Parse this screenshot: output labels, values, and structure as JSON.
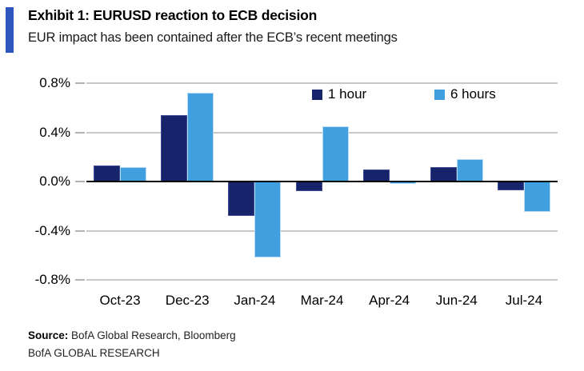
{
  "header": {
    "exhibit_title": "Exhibit 1: EURUSD reaction to ECB decision",
    "subtitle": "EUR impact has been contained after the ECB’s recent meetings",
    "accent_color": "#2d55bb"
  },
  "chart_data": {
    "type": "bar",
    "title": "EURUSD reaction to ECB decision",
    "categories": [
      "Oct-23",
      "Dec-23",
      "Jan-24",
      "Mar-24",
      "Apr-24",
      "Jun-24",
      "Jul-24"
    ],
    "series": [
      {
        "name": "1 hour",
        "color": "#17246b",
        "values": [
          0.13,
          0.54,
          -0.28,
          -0.08,
          0.1,
          0.12,
          -0.07
        ]
      },
      {
        "name": "6 hours",
        "color": "#3f9fdf",
        "values": [
          0.12,
          0.72,
          -0.62,
          0.45,
          -0.02,
          0.18,
          -0.25
        ]
      }
    ],
    "xlabel": "",
    "ylabel": "",
    "unit": "%",
    "ylim": [
      -0.8,
      0.8
    ],
    "yaxis": {
      "ticks": [
        {
          "label": "0.8%",
          "value": 0.8
        },
        {
          "label": "0.4%",
          "value": 0.4
        },
        {
          "label": "0.0%",
          "value": 0.0
        },
        {
          "label": "-0.4%",
          "value": -0.4
        },
        {
          "label": "-0.8%",
          "value": -0.8
        }
      ]
    },
    "grid": "horizontal",
    "legend_position": "top-inside"
  },
  "footer": {
    "source_label": "Source:",
    "source_text": "BofA Global Research, Bloomberg",
    "brand": "BofA GLOBAL RESEARCH"
  }
}
